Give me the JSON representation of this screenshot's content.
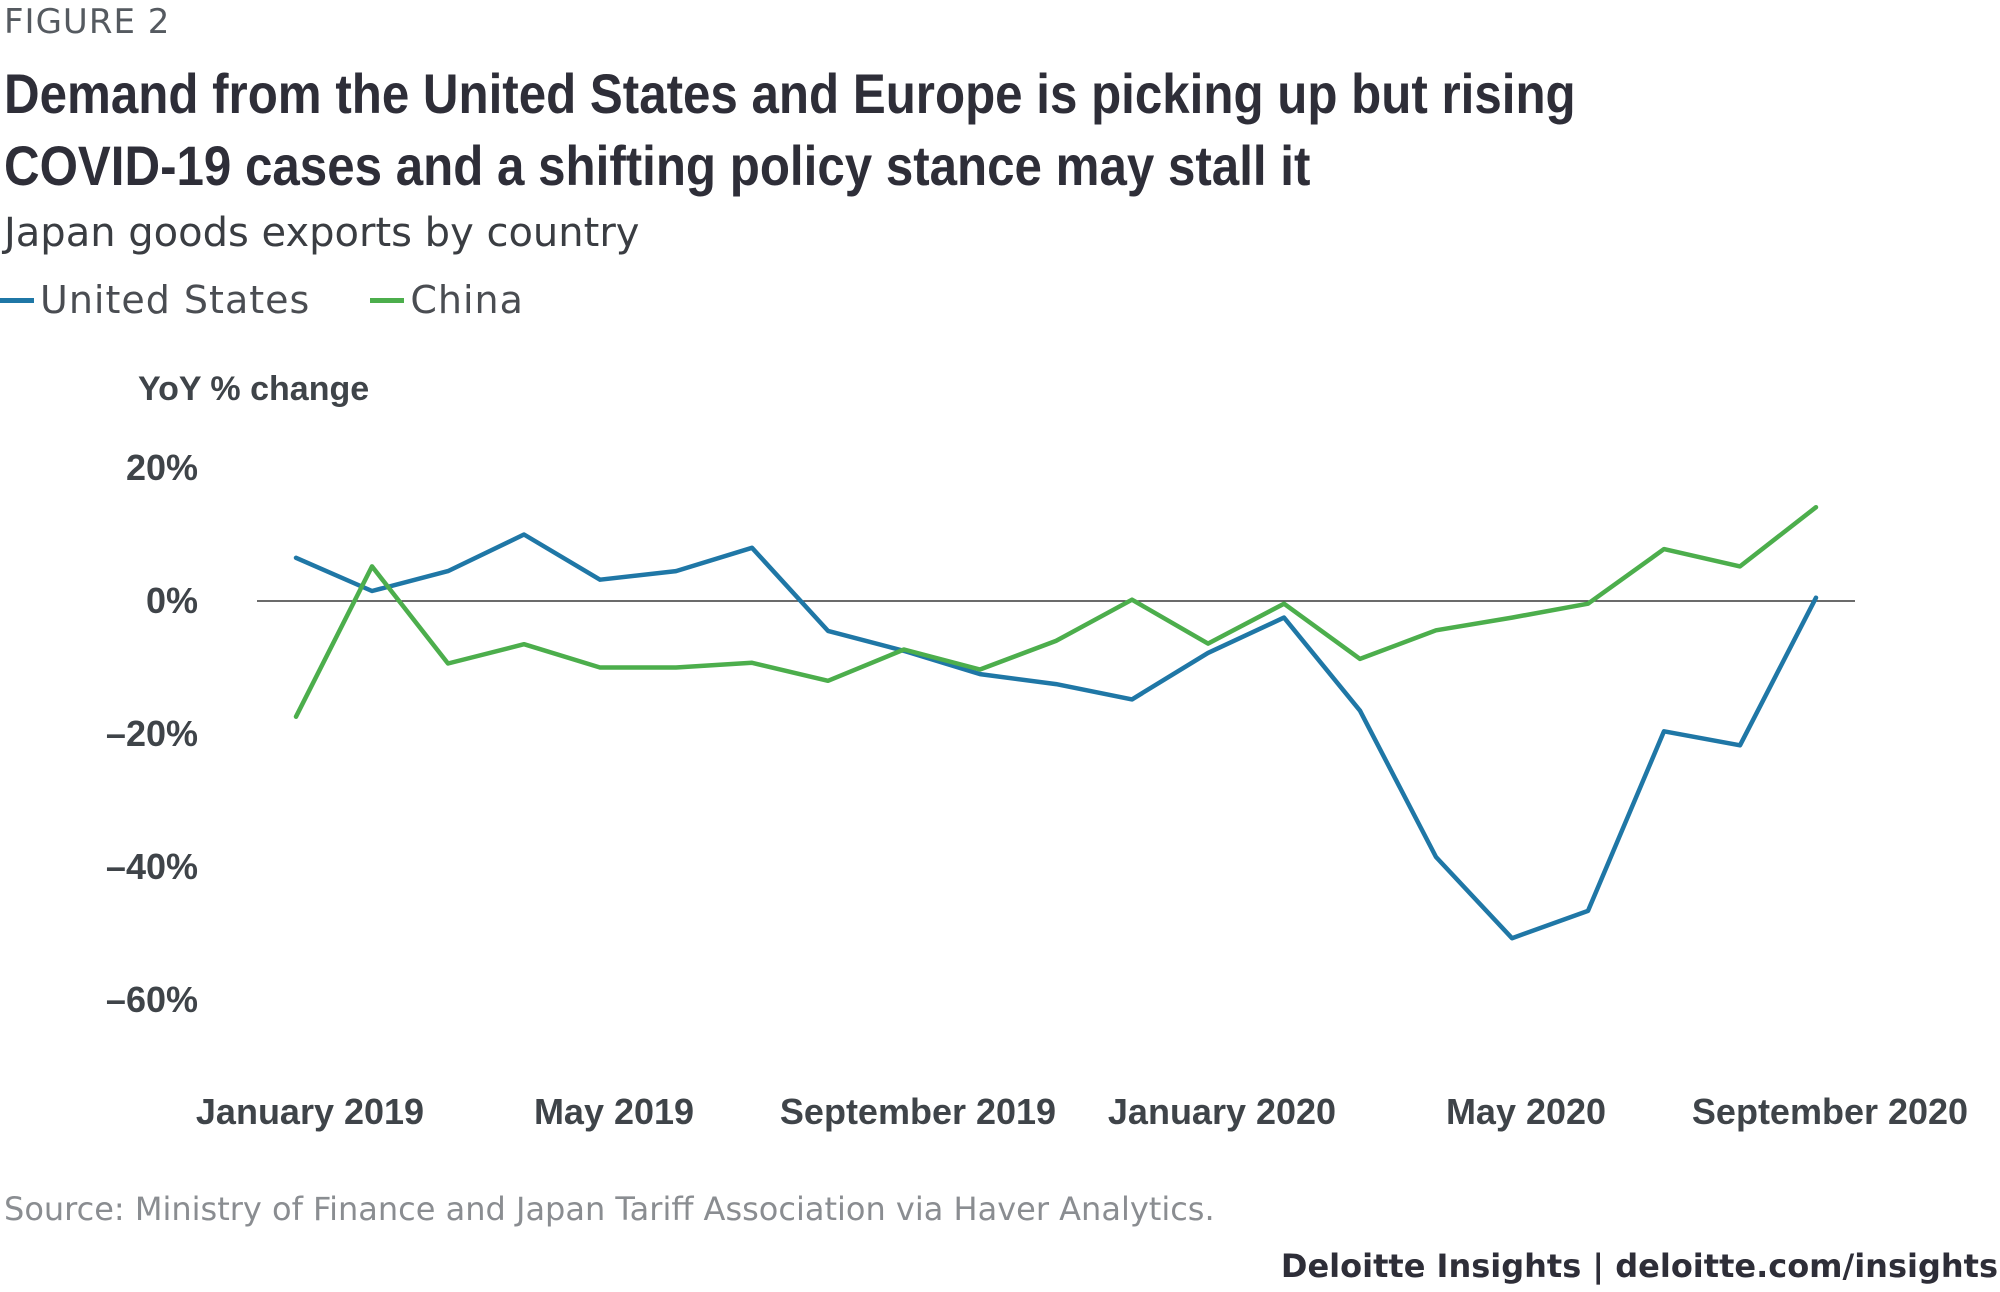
{
  "figure_label": "FIGURE 2",
  "title": "Demand from the United States and Europe is picking up but rising COVID-19 cases and a shifting policy stance may stall it",
  "subtitle": "Japan goods exports by country",
  "source": "Source: Ministry of Finance and Japan Tariff Association via Haver Analytics.",
  "credit": "Deloitte Insights | deloitte.com/insights",
  "chart_data": {
    "type": "line",
    "ylabel": "YoY % change",
    "ylim": [
      -60,
      20
    ],
    "yticks": [
      20,
      0,
      -20,
      -40,
      -60
    ],
    "ytick_labels": [
      "20%",
      "0%",
      "–20%",
      "–40%",
      "–60%"
    ],
    "x": [
      "2019-01",
      "2019-02",
      "2019-03",
      "2019-04",
      "2019-05",
      "2019-06",
      "2019-07",
      "2019-08",
      "2019-09",
      "2019-10",
      "2019-11",
      "2019-12",
      "2020-01",
      "2020-02",
      "2020-03",
      "2020-04",
      "2020-05",
      "2020-06",
      "2020-07",
      "2020-08",
      "2020-09"
    ],
    "xtick_labels": [
      "January 2019",
      "May 2019",
      "September 2019",
      "January 2020",
      "May 2020",
      "September 2020"
    ],
    "zero_line": true,
    "grid": false,
    "legend_position": "top-left",
    "series": [
      {
        "name": "United States",
        "color": "#1f77a6",
        "values": [
          6.5,
          1.5,
          4.5,
          10,
          3.2,
          4.5,
          8,
          -4.5,
          -7.5,
          -11,
          -12.5,
          -14.8,
          -7.8,
          -2.5,
          -16.5,
          -38.5,
          -50.7,
          -46.6,
          -19.6,
          -21.7,
          0.5
        ]
      },
      {
        "name": "China",
        "color": "#4cae4c",
        "values": [
          -17.4,
          5.2,
          -9.4,
          -6.5,
          -10,
          -10,
          -9.3,
          -12,
          -7.3,
          -10.3,
          -6,
          0.2,
          -6.4,
          -0.4,
          -8.7,
          -4.4,
          -2.5,
          -0.4,
          7.8,
          5.2,
          14.1
        ]
      }
    ]
  }
}
